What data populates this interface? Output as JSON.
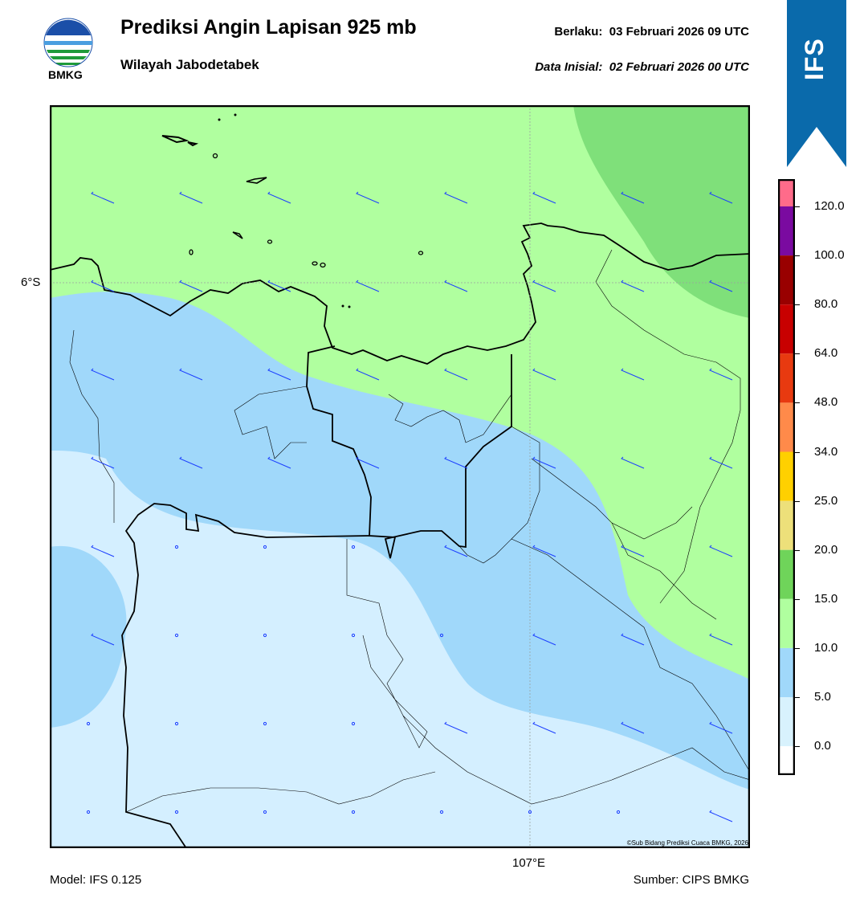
{
  "header": {
    "title": "Prediksi Angin Lapisan 925 mb",
    "subtitle": "Wilayah Jabodetabek",
    "valid_label": "Berlaku:",
    "valid_value": "03 Februari 2026 09 UTC",
    "init_label": "Data Inisial:",
    "init_value": "02 Februari 2026 00 UTC"
  },
  "logo": {
    "text": "BMKG",
    "icon": "bmkg-logo"
  },
  "banner": {
    "text": "IFS",
    "color": "#0a6aab"
  },
  "map": {
    "lat_label": "6°S",
    "lon_label": "107°E",
    "credit": "©Sub Bidang Prediksi Cuaca BMKG, 2026",
    "barb_color": "#1a3cff"
  },
  "colorbar": {
    "unit_levels": [
      "120.0",
      "100.0",
      "80.0",
      "64.0",
      "48.0",
      "34.0",
      "25.0",
      "20.0",
      "15.0",
      "10.0",
      "5.0",
      "0.0"
    ],
    "colors": [
      "#ff6b8a",
      "#7a0aa0",
      "#990000",
      "#c80000",
      "#e83a10",
      "#ff8a4a",
      "#ffd000",
      "#ede07a",
      "#6fd45a",
      "#b0ff9f",
      "#a0d8fa",
      "#d8f2fd",
      "#ffffff"
    ]
  },
  "footer": {
    "model": "Model: IFS 0.125",
    "source": "Sumber: CIPS BMKG"
  }
}
